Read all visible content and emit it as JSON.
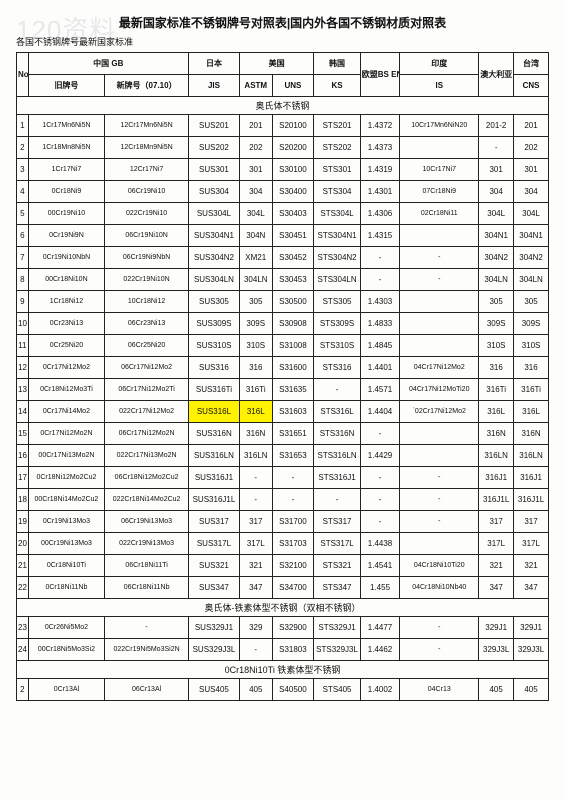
{
  "watermark": "120资料",
  "title": "最新国家标准不锈钢牌号对照表|国内外各国不锈钢材质对照表",
  "subtitle": "各国不锈钢牌号最新国家标准",
  "headers": {
    "no": "No",
    "cn": "中国 GB",
    "jp": "日本",
    "us": "美国",
    "kr": "韩国",
    "eu": "欧盟BS EN",
    "in": "印度",
    "au": "澳大利亚 AS",
    "tw": "台湾",
    "old": "旧牌号",
    "new": "新牌号（07.10）",
    "jis": "JIS",
    "astm": "ASTM",
    "uns": "UNS",
    "ks": "KS",
    "is": "IS",
    "cns": "CNS"
  },
  "section1": "奥氏体不锈钢",
  "section2": "奥氏体-铁素体型不锈钢（双相不锈钢）",
  "section3": "0Cr18Ni10Ti 铁素体型不锈钢",
  "rows_a": [
    [
      "1",
      "1Cr17Mn6Ni5N",
      "12Cr17Mn6Ni5N",
      "SUS201",
      "201",
      "S20100",
      "STS201",
      "1.4372",
      "10Cr17Mn6NiN20",
      "201-2",
      "201"
    ],
    [
      "2",
      "1Cr18Mn8Ni5N",
      "12Cr18Mn9Ni5N",
      "SUS202",
      "202",
      "S20200",
      "STS202",
      "1.4373",
      "",
      "-",
      "202"
    ],
    [
      "3",
      "1Cr17Ni7",
      "12Cr17Ni7",
      "SUS301",
      "301",
      "S30100",
      "STS301",
      "1.4319",
      "10Cr17Ni7",
      "301",
      "301"
    ],
    [
      "4",
      "0Cr18Ni9",
      "06Cr19Ni10",
      "SUS304",
      "304",
      "S30400",
      "STS304",
      "1.4301",
      "07Cr18Ni9",
      "304",
      "304"
    ],
    [
      "5",
      "00Cr19Ni10",
      "022Cr19Ni10",
      "SUS304L",
      "304L",
      "S30403",
      "STS304L",
      "1.4306",
      "02Cr18Ni11",
      "304L",
      "304L"
    ],
    [
      "6",
      "0Cr19Ni9N",
      "06Cr19Ni10N",
      "SUS304N1",
      "304N",
      "S30451",
      "STS304N1",
      "1.4315",
      "",
      "304N1",
      "304N1"
    ],
    [
      "7",
      "0Cr19Ni10NbN",
      "06Cr19Ni9NbN",
      "SUS304N2",
      "XM21",
      "S30452",
      "STS304N2",
      "-",
      "-",
      "304N2",
      "304N2"
    ],
    [
      "8",
      "00Cr18Ni10N",
      "022Cr19Ni10N",
      "SUS304LN",
      "304LN",
      "S30453",
      "STS304LN",
      "-",
      "-",
      "304LN",
      "304LN"
    ],
    [
      "9",
      "1Cr18Ni12",
      "10Cr18Ni12",
      "SUS305",
      "305",
      "S30500",
      "STS305",
      "1.4303",
      "",
      "305",
      "305"
    ],
    [
      "10",
      "0Cr23Ni13",
      "06Cr23Ni13",
      "SUS309S",
      "309S",
      "S30908",
      "STS309S",
      "1.4833",
      "",
      "309S",
      "309S"
    ],
    [
      "11",
      "0Cr25Ni20",
      "06Cr25Ni20",
      "SUS310S",
      "310S",
      "S31008",
      "STS310S",
      "1.4845",
      "",
      "310S",
      "310S"
    ],
    [
      "12",
      "0Cr17Ni12Mo2",
      "06Cr17Ni12Mo2",
      "SUS316",
      "316",
      "S31600",
      "STS316",
      "1.4401",
      "04Cr17Ni12Mo2",
      "316",
      "316"
    ],
    [
      "13",
      "0Cr18Ni12Mo3Ti",
      "06Cr17Ni12Mo2Ti",
      "SUS316Ti",
      "316Ti",
      "S31635",
      "-",
      "1.4571",
      "04Cr17Ni12MoTi20",
      "316Ti",
      "316Ti"
    ]
  ],
  "row_hl": [
    "14",
    "0Cr17Ni14Mo2",
    "022Cr17Ni12Mo2",
    "SUS316L",
    "316L",
    "S31603",
    "STS316L",
    "1.4404",
    "`02Cr17Ni12Mo2",
    "316L",
    "316L"
  ],
  "rows_b": [
    [
      "15",
      "0Cr17Ni12Mo2N",
      "06Cr17Ni12Mo2N",
      "SUS316N",
      "316N",
      "S31651",
      "STS316N",
      "-",
      "",
      "316N",
      "316N"
    ],
    [
      "16",
      "00Cr17Ni13Mo2N",
      "022Cr17Ni13Mo2N",
      "SUS316LN",
      "316LN",
      "S31653",
      "STS316LN",
      "1.4429",
      "",
      "316LN",
      "316LN"
    ],
    [
      "17",
      "0Cr18Ni12Mo2Cu2",
      "06Cr18Ni12Mo2Cu2",
      "SUS316J1",
      "-",
      "-",
      "STS316J1",
      "-",
      "-",
      "316J1",
      "316J1"
    ],
    [
      "18",
      "00Cr18Ni14Mo2Cu2",
      "022Cr18Ni14Mo2Cu2",
      "SUS316J1L",
      "-",
      "-",
      "-",
      "-",
      "-",
      "316J1L",
      "316J1L"
    ],
    [
      "19",
      "0Cr19Ni13Mo3",
      "06Cr19Ni13Mo3",
      "SUS317",
      "317",
      "S31700",
      "STS317",
      "-",
      "-",
      "317",
      "317"
    ],
    [
      "20",
      "00Cr19Ni13Mo3",
      "022Cr19Ni13Mo3",
      "SUS317L",
      "317L",
      "S31703",
      "STS317L",
      "1.4438",
      "",
      "317L",
      "317L"
    ],
    [
      "21",
      "0Cr18Ni10Ti",
      "06Cr18Ni11Ti",
      "SUS321",
      "321",
      "S32100",
      "STS321",
      "1.4541",
      "04Cr18Ni10Ti20",
      "321",
      "321"
    ],
    [
      "22",
      "0Cr18Ni11Nb",
      "06Cr18Ni11Nb",
      "SUS347",
      "347",
      "S34700",
      "STS347",
      "1.455",
      "04Cr18Ni10Nb40",
      "347",
      "347"
    ]
  ],
  "rows_c": [
    [
      "23",
      "0Cr26Ni5Mo2",
      "-",
      "SUS329J1",
      "329",
      "S32900",
      "STS329J1",
      "1.4477",
      "-",
      "329J1",
      "329J1"
    ],
    [
      "24",
      "00Cr18Ni5Mo3Si2",
      "022Cr19Ni5Mo3Si2N",
      "SUS329J3L",
      "-",
      "S31803",
      "STS329J3L",
      "1.4462",
      "-",
      "329J3L",
      "329J3L"
    ]
  ],
  "rows_d": [
    [
      "2",
      "0Cr13Al",
      "06Cr13Al",
      "SUS405",
      "405",
      "S40500",
      "STS405",
      "1.4002",
      "04Cr13",
      "405",
      "405"
    ]
  ]
}
